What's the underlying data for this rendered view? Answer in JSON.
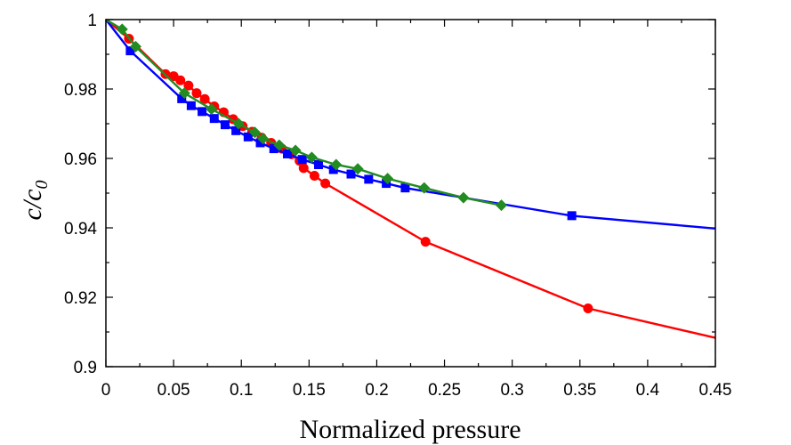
{
  "chart_data": {
    "type": "line",
    "title": "",
    "xlabel": "Normalized pressure",
    "ylabel": "c/c",
    "ylabel_subscript": "0",
    "xlim": [
      0,
      0.45
    ],
    "ylim": [
      0.9,
      1.0
    ],
    "x_ticks": [
      0,
      0.05,
      0.1,
      0.15,
      0.2,
      0.25,
      0.3,
      0.35,
      0.4,
      0.45
    ],
    "x_tick_labels": [
      "0",
      "0.05",
      "0.1",
      "0.15",
      "0.2",
      "0.25",
      "0.3",
      "0.35",
      "0.4",
      "0.45"
    ],
    "y_ticks": [
      0.9,
      0.92,
      0.94,
      0.96,
      0.98,
      1.0
    ],
    "y_tick_labels": [
      "0.9",
      "0.92",
      "0.94",
      "0.96",
      "0.98",
      "1"
    ],
    "x_minor_ticks": [
      0.025,
      0.075,
      0.125,
      0.175,
      0.225,
      0.275,
      0.325,
      0.375,
      0.425
    ],
    "y_minor_ticks": [
      0.91,
      0.93,
      0.95,
      0.97,
      0.99
    ],
    "grid": false,
    "legend": "none",
    "series": [
      {
        "color": "#ff0000",
        "marker": "circle",
        "points": [
          [
            0,
            1.0
          ],
          [
            0.017,
            0.9945
          ],
          [
            0.044,
            0.9843
          ],
          [
            0.05,
            0.9837
          ],
          [
            0.055,
            0.9825
          ],
          [
            0.061,
            0.981
          ],
          [
            0.067,
            0.9788
          ],
          [
            0.073,
            0.9771
          ],
          [
            0.08,
            0.975
          ],
          [
            0.087,
            0.9733
          ],
          [
            0.094,
            0.9713
          ],
          [
            0.101,
            0.9693
          ],
          [
            0.108,
            0.9677
          ],
          [
            0.115,
            0.966
          ],
          [
            0.122,
            0.9645
          ],
          [
            0.13,
            0.9628
          ],
          [
            0.137,
            0.9612
          ],
          [
            0.143,
            0.9593
          ],
          [
            0.146,
            0.9572
          ],
          [
            0.154,
            0.955
          ],
          [
            0.162,
            0.9528
          ],
          [
            0.236,
            0.936
          ],
          [
            0.356,
            0.9168
          ],
          [
            0.45,
            0.9083
          ]
        ]
      },
      {
        "color": "#0000ff",
        "marker": "square",
        "points": [
          [
            0,
            1.0
          ],
          [
            0.018,
            0.991
          ],
          [
            0.056,
            0.9772
          ],
          [
            0.063,
            0.9752
          ],
          [
            0.071,
            0.9735
          ],
          [
            0.08,
            0.9715
          ],
          [
            0.088,
            0.9697
          ],
          [
            0.096,
            0.968
          ],
          [
            0.105,
            0.9662
          ],
          [
            0.114,
            0.9645
          ],
          [
            0.124,
            0.9628
          ],
          [
            0.134,
            0.9613
          ],
          [
            0.145,
            0.9597
          ],
          [
            0.157,
            0.9582
          ],
          [
            0.168,
            0.9568
          ],
          [
            0.181,
            0.9555
          ],
          [
            0.194,
            0.954
          ],
          [
            0.207,
            0.9528
          ],
          [
            0.221,
            0.9515
          ],
          [
            0.344,
            0.9435
          ],
          [
            0.45,
            0.9398
          ]
        ]
      },
      {
        "color": "#228b22",
        "marker": "diamond",
        "points": [
          [
            0,
            1.0
          ],
          [
            0.012,
            0.9972
          ],
          [
            0.022,
            0.9922
          ],
          [
            0.058,
            0.9788
          ],
          [
            0.078,
            0.9742
          ],
          [
            0.098,
            0.97
          ],
          [
            0.11,
            0.9675
          ],
          [
            0.116,
            0.9657
          ],
          [
            0.128,
            0.9638
          ],
          [
            0.14,
            0.9623
          ],
          [
            0.152,
            0.9603
          ],
          [
            0.17,
            0.9582
          ],
          [
            0.186,
            0.957
          ],
          [
            0.208,
            0.9542
          ],
          [
            0.235,
            0.9515
          ],
          [
            0.264,
            0.9487
          ],
          [
            0.292,
            0.9465
          ]
        ]
      }
    ]
  }
}
